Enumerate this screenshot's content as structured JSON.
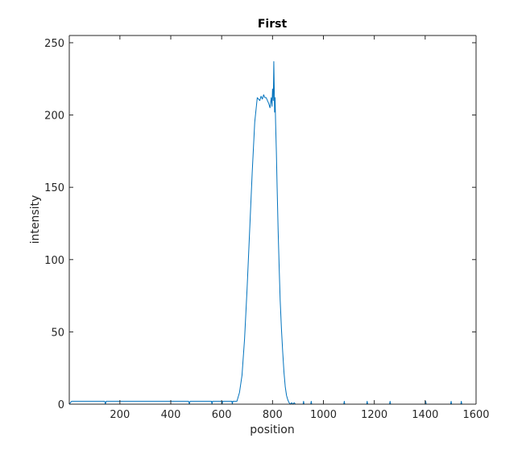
{
  "chart_data": {
    "type": "line",
    "title": "First",
    "xlabel": "position",
    "ylabel": "intensity",
    "xlim": [
      1,
      1600
    ],
    "ylim": [
      0,
      255
    ],
    "xticks": [
      200,
      400,
      600,
      800,
      1000,
      1200,
      1400,
      1600
    ],
    "xtick_labels": [
      "200",
      "400",
      "600",
      "800",
      "1000",
      "1200",
      "1400",
      "1600"
    ],
    "yticks": [
      0,
      50,
      100,
      150,
      200,
      250
    ],
    "ytick_labels": [
      "0",
      "50",
      "100",
      "150",
      "200",
      "250"
    ],
    "grid": false,
    "series": [
      {
        "color": "#0072BD",
        "x": [
          1,
          10,
          140,
          143,
          146,
          470,
          473,
          476,
          560,
          562,
          564,
          600,
          602,
          604,
          640,
          642,
          644,
          652,
          660,
          670,
          680,
          690,
          700,
          710,
          720,
          730,
          740,
          750,
          755,
          760,
          765,
          770,
          775,
          780,
          785,
          790,
          795,
          798,
          800,
          803,
          805,
          807,
          808,
          810,
          812,
          815,
          818,
          822,
          826,
          830,
          835,
          840,
          845,
          850,
          855,
          860,
          865,
          870,
          875,
          880,
          885,
          890,
          895,
          900,
          920,
          922,
          924,
          950,
          952,
          954,
          1080,
          1082,
          1084,
          1170,
          1172,
          1174,
          1260,
          1262,
          1264,
          1400,
          1402,
          1404,
          1500,
          1502,
          1504,
          1540,
          1542,
          1544,
          1600
        ],
        "y": [
          0,
          2,
          2,
          0,
          2,
          2,
          0,
          2,
          2,
          0,
          2,
          2,
          0,
          2,
          2,
          0,
          2,
          2,
          2,
          8,
          20,
          45,
          80,
          120,
          160,
          195,
          212,
          210,
          213,
          211,
          214,
          212,
          212,
          210,
          208,
          205,
          212,
          206,
          218,
          210,
          237,
          215,
          202,
          212,
          195,
          175,
          150,
          120,
          95,
          72,
          52,
          36,
          22,
          12,
          6,
          3,
          1,
          0,
          1,
          0,
          1,
          0,
          0,
          0,
          0,
          2,
          0,
          0,
          2,
          0,
          0,
          2,
          0,
          0,
          2,
          0,
          0,
          2,
          0,
          0,
          2,
          0,
          0,
          2,
          0,
          0,
          2,
          0,
          0
        ]
      }
    ]
  }
}
